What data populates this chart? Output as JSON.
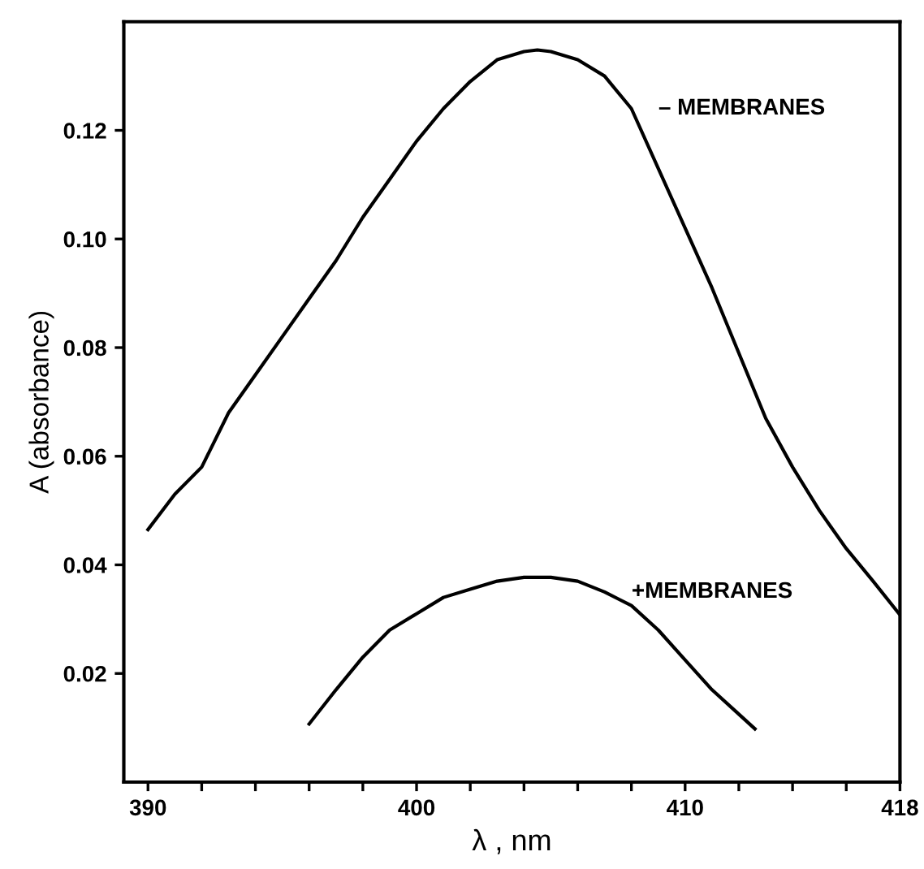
{
  "chart_data": {
    "type": "line",
    "xlabel": "λ , nm",
    "ylabel": "A (absorbance)",
    "xlim": [
      389.1,
      418
    ],
    "ylim": [
      0,
      0.14
    ],
    "xticks": [
      390,
      {
        "value": 392,
        "label": null
      },
      {
        "value": 394,
        "label": null
      },
      {
        "value": 396,
        "label": null
      },
      {
        "value": 398,
        "label": null
      },
      400,
      {
        "value": 402,
        "label": null
      },
      {
        "value": 404,
        "label": null
      },
      {
        "value": 406,
        "label": null
      },
      {
        "value": 408,
        "label": null
      },
      410,
      {
        "value": 412,
        "label": null
      },
      {
        "value": 414,
        "label": null
      },
      {
        "value": 416,
        "label": null
      },
      418
    ],
    "yticks": [
      0.02,
      0.04,
      0.06,
      0.08,
      {
        "value": 0.1,
        "label": "0.10"
      },
      0.12
    ],
    "grid": false,
    "marker": "none",
    "line_style": "solid",
    "series": [
      {
        "name": "– MEMBRANES",
        "color": "#000000",
        "x": [
          390,
          391,
          392,
          393,
          394,
          395,
          396,
          397,
          398,
          399,
          400,
          401,
          402,
          403,
          404,
          404.5,
          405,
          406,
          407,
          408,
          409,
          410,
          411,
          412,
          413,
          414,
          415,
          416,
          417,
          418
        ],
        "values": [
          0.0465,
          0.053,
          0.058,
          0.068,
          0.075,
          0.082,
          0.089,
          0.096,
          0.104,
          0.111,
          0.118,
          0.124,
          0.129,
          0.133,
          0.1345,
          0.1348,
          0.1345,
          0.133,
          0.13,
          0.124,
          0.113,
          0.102,
          0.091,
          0.079,
          0.067,
          0.058,
          0.05,
          0.043,
          0.037,
          0.0308
        ]
      },
      {
        "name": "+MEMBRANES",
        "color": "#000000",
        "x": [
          396,
          397,
          398,
          399,
          400,
          401,
          402,
          403,
          404,
          405,
          406,
          407,
          408,
          409,
          410,
          411,
          412,
          412.6
        ],
        "values": [
          0.0107,
          0.017,
          0.023,
          0.028,
          0.031,
          0.034,
          0.0355,
          0.037,
          0.0377,
          0.0377,
          0.037,
          0.035,
          0.0325,
          0.028,
          0.0225,
          0.017,
          0.0125,
          0.0098
        ]
      }
    ]
  }
}
